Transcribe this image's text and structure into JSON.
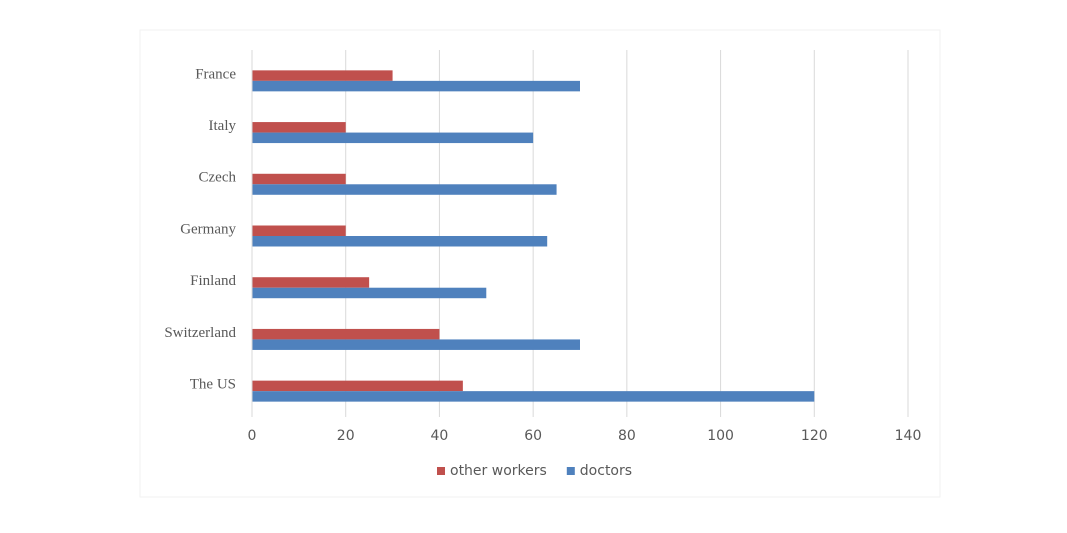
{
  "chart_data": {
    "type": "barh",
    "categories": [
      "France",
      "Italy",
      "Czech",
      "Germany",
      "Finland",
      "Switzerland",
      "The US"
    ],
    "series": [
      {
        "name": "other workers",
        "color": "#c0504d",
        "values": [
          30,
          20,
          20,
          20,
          25,
          40,
          45
        ]
      },
      {
        "name": "doctors",
        "color": "#4f81bd",
        "values": [
          70,
          60,
          65,
          63,
          50,
          70,
          120
        ]
      }
    ],
    "xlim": [
      0,
      140
    ],
    "xticks": [
      0,
      20,
      40,
      60,
      80,
      100,
      120,
      140
    ],
    "grid": true,
    "legend": "bottom"
  }
}
